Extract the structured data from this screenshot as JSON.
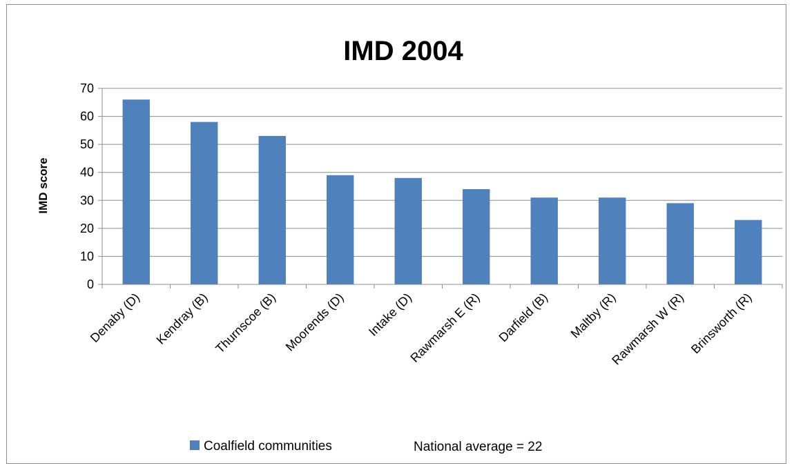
{
  "chart_data": {
    "type": "bar",
    "title": "IMD 2004",
    "xlabel": "",
    "ylabel": "IMD score",
    "ylim": [
      0,
      70
    ],
    "yticks": [
      0,
      10,
      20,
      30,
      40,
      50,
      60,
      70
    ],
    "grid": true,
    "legend": "bottom",
    "categories": [
      "Denaby (D)",
      "Kendray (B)",
      "Thurnscoe (B)",
      "Moorends (D)",
      "Intake (D)",
      "Rawmarsh E (R)",
      "Darfield (B)",
      "Maltby (R)",
      "Rawmarsh W (R)",
      "Brinsworth (R)"
    ],
    "series": [
      {
        "name": "Coalfield communities",
        "values": [
          66,
          58,
          53,
          39,
          38,
          34,
          31,
          31,
          29,
          23
        ],
        "color": "#4f81bd"
      }
    ],
    "annotation": "National average = 22"
  }
}
